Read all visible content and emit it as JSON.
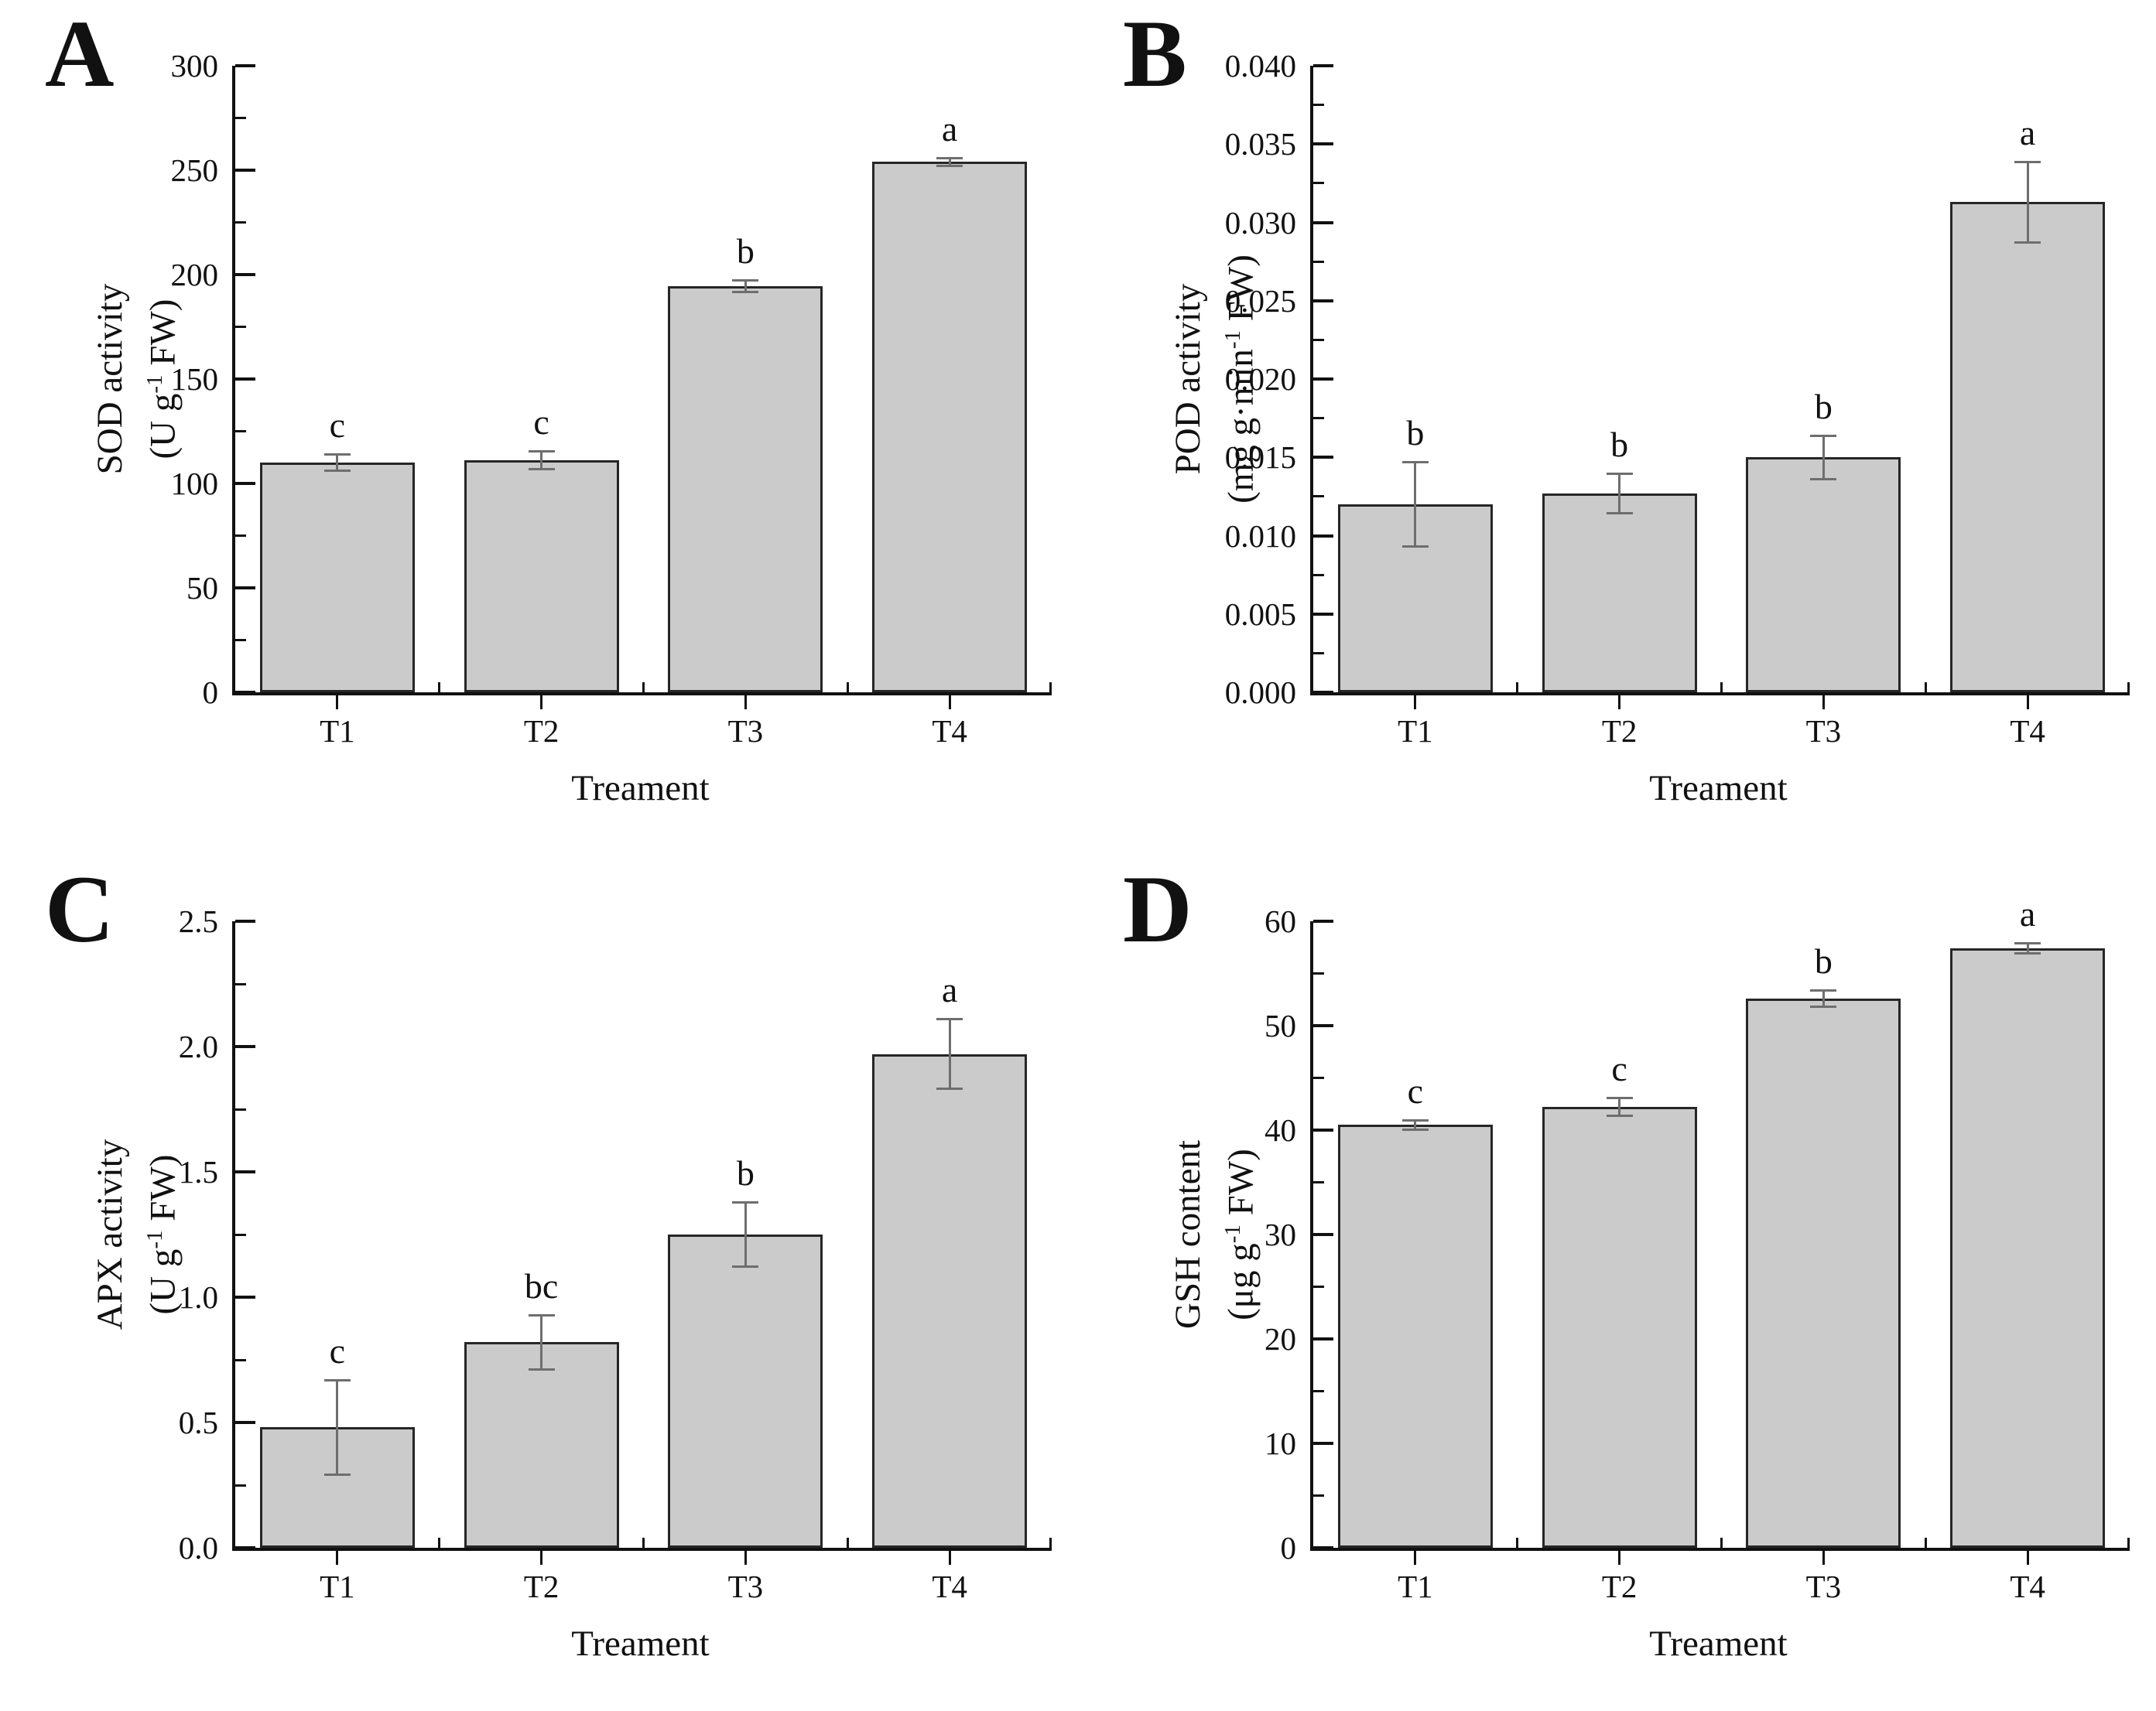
{
  "figure": {
    "background_color": "#ffffff",
    "bar_fill_color": "#cbcbcb",
    "bar_border_color": "#262626",
    "error_bar_color": "#6e6e6e",
    "axis_color": "#111111"
  },
  "chart_data": [
    {
      "type": "bar",
      "panel_letter": "A",
      "ylabel": "SOD activity",
      "y_unit_parts": [
        {
          "t": "(U g"
        },
        {
          "t": "-1",
          "sup": true
        },
        {
          "t": " FW)"
        }
      ],
      "xlabel": "Treament",
      "categories": [
        "T1",
        "T2",
        "T3",
        "T4"
      ],
      "values": [
        110,
        111,
        194.5,
        254
      ],
      "errors": [
        4,
        4.5,
        3,
        2
      ],
      "sig_letters": [
        "c",
        "c",
        "b",
        "a"
      ],
      "ylim": [
        0,
        300
      ],
      "y_step": 50,
      "decimals": 0,
      "grid": false,
      "legend": false
    },
    {
      "type": "bar",
      "panel_letter": "B",
      "ylabel": "POD activity",
      "y_unit_parts": [
        {
          "t": "(mg g·min"
        },
        {
          "t": "-1",
          "sup": true
        },
        {
          "t": " FW)"
        }
      ],
      "xlabel": "Treament",
      "categories": [
        "T1",
        "T2",
        "T3",
        "T4"
      ],
      "values": [
        0.012,
        0.0127,
        0.015,
        0.0313
      ],
      "errors": [
        0.0027,
        0.0013,
        0.0014,
        0.0026
      ],
      "sig_letters": [
        "b",
        "b",
        "b",
        "a"
      ],
      "ylim": [
        0,
        0.04
      ],
      "y_step": 0.005,
      "decimals": 3,
      "grid": false,
      "legend": false
    },
    {
      "type": "bar",
      "panel_letter": "C",
      "ylabel": "APX activity",
      "y_unit_parts": [
        {
          "t": "(U g"
        },
        {
          "t": "-1",
          "sup": true
        },
        {
          "t": " FW)"
        }
      ],
      "xlabel": "Treament",
      "categories": [
        "T1",
        "T2",
        "T3",
        "T4"
      ],
      "values": [
        0.48,
        0.82,
        1.25,
        1.97
      ],
      "errors": [
        0.19,
        0.11,
        0.13,
        0.14
      ],
      "sig_letters": [
        "c",
        "bc",
        "b",
        "a"
      ],
      "ylim": [
        0,
        2.5
      ],
      "y_step": 0.5,
      "decimals": 1,
      "grid": false,
      "legend": false
    },
    {
      "type": "bar",
      "panel_letter": "D",
      "ylabel": "GSH content",
      "y_unit_parts": [
        {
          "t": "(μg g"
        },
        {
          "t": "-1",
          "sup": true
        },
        {
          "t": " FW)"
        }
      ],
      "xlabel": "Treament",
      "categories": [
        "T1",
        "T2",
        "T3",
        "T4"
      ],
      "values": [
        40.5,
        42.2,
        52.6,
        57.4
      ],
      "errors": [
        0.5,
        0.9,
        0.8,
        0.5
      ],
      "sig_letters": [
        "c",
        "c",
        "b",
        "a"
      ],
      "ylim": [
        0,
        60
      ],
      "y_step": 10,
      "decimals": 0,
      "grid": false,
      "legend": false
    }
  ]
}
